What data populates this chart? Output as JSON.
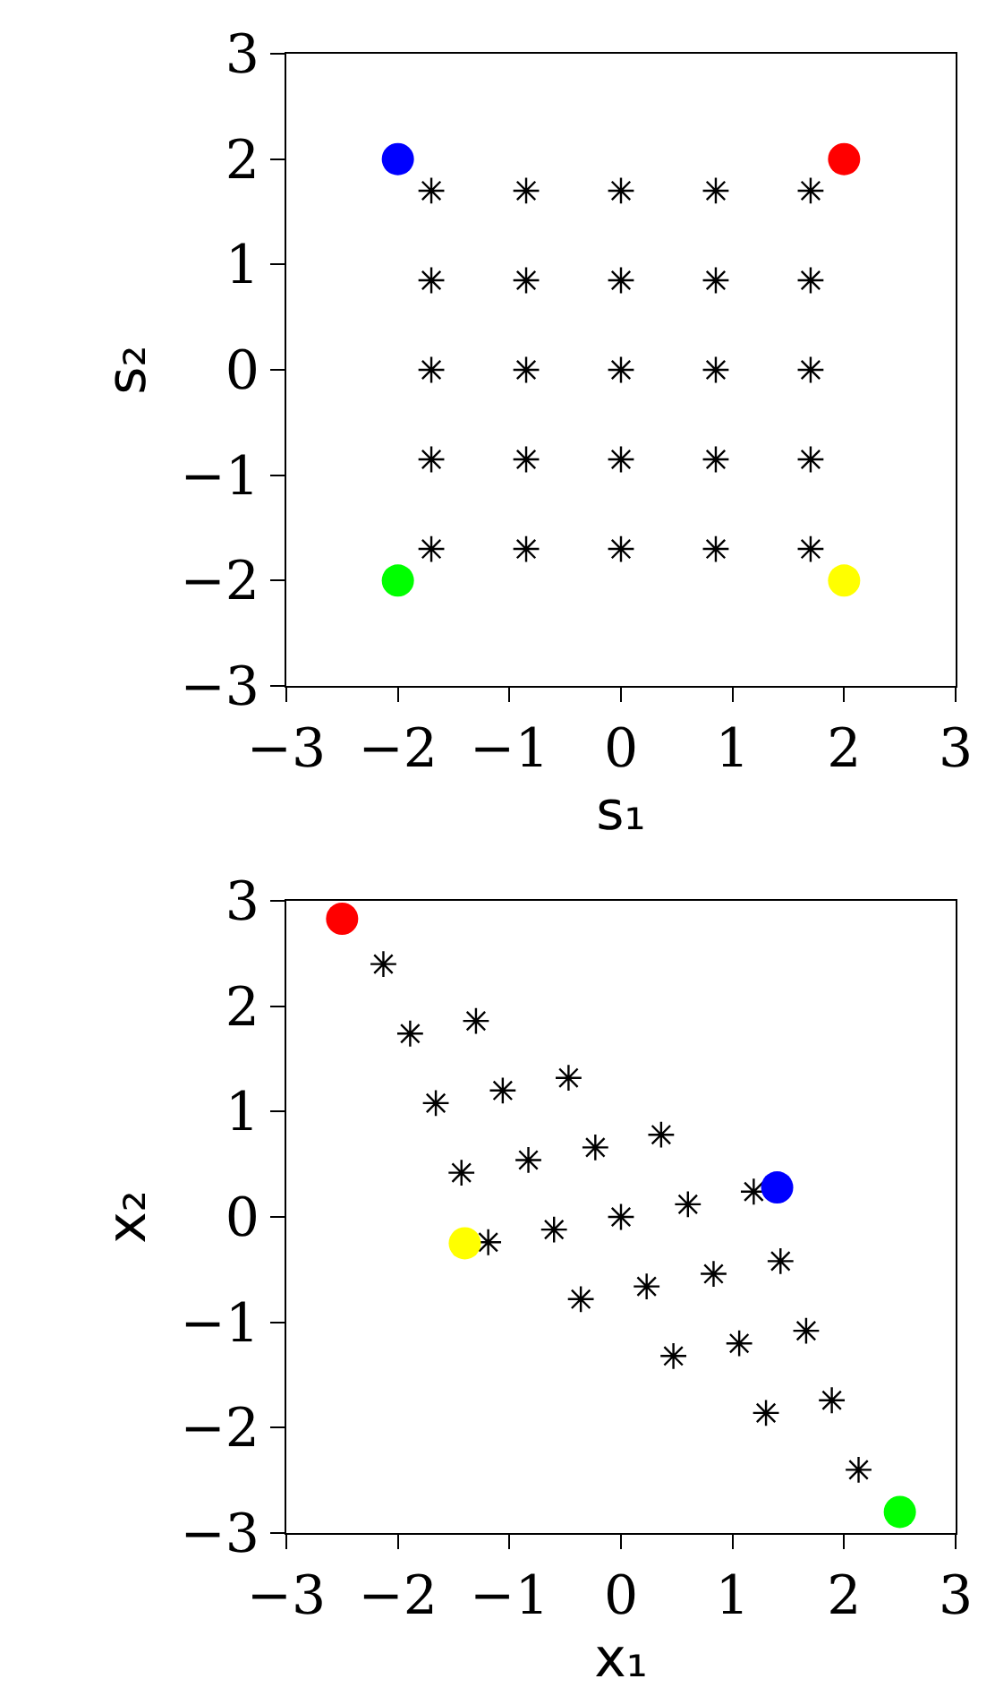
{
  "chart_data": [
    {
      "type": "scatter",
      "xlabel": "s₁",
      "ylabel": "s₂",
      "xlim": [
        -3,
        3
      ],
      "ylim": [
        -3,
        3
      ],
      "xticks": [
        -3,
        -2,
        -1,
        0,
        1,
        2,
        3
      ],
      "yticks": [
        -3,
        -2,
        -1,
        0,
        1,
        2,
        3
      ],
      "x": [
        -1.7,
        -1.7,
        -1.7,
        -1.7,
        -1.7,
        -0.85,
        -0.85,
        -0.85,
        -0.85,
        -0.85,
        0,
        0,
        0,
        0,
        0,
        0.85,
        0.85,
        0.85,
        0.85,
        0.85,
        1.7,
        1.7,
        1.7,
        1.7,
        1.7
      ],
      "series": [
        {
          "color": "#000000",
          "marker": "cross",
          "values": [
            -1.7,
            -0.85,
            0,
            0.85,
            1.7,
            -1.7,
            -0.85,
            0,
            0.85,
            1.7,
            -1.7,
            -0.85,
            0,
            0.85,
            1.7,
            -1.7,
            -0.85,
            0,
            0.85,
            1.7,
            -1.7,
            -0.85,
            0,
            0.85,
            1.7
          ]
        },
        {
          "x": [
            2,
            -2,
            -2,
            2
          ],
          "colors": [
            "#ff0000",
            "#0000ff",
            "#00ff00",
            "#ffff00"
          ],
          "marker": "circle",
          "values": [
            2,
            2,
            -2,
            -2
          ]
        }
      ]
    },
    {
      "type": "scatter",
      "xlabel": "x₁",
      "ylabel": "x₂",
      "xlim": [
        -3,
        3
      ],
      "ylim": [
        -3,
        3
      ],
      "xticks": [
        -3,
        -2,
        -1,
        0,
        1,
        2,
        3
      ],
      "yticks": [
        -3,
        -2,
        -1,
        0,
        1,
        2,
        3
      ],
      "x": [
        2.13,
        1.89,
        1.66,
        1.43,
        1.19,
        1.3,
        1.06,
        0.83,
        0.6,
        0.36,
        0.47,
        0.23,
        0,
        -0.23,
        -0.47,
        -0.36,
        -0.6,
        -0.83,
        -1.06,
        -1.3,
        -1.19,
        -1.43,
        -1.66,
        -1.89,
        -2.13
      ],
      "series": [
        {
          "color": "#000000",
          "marker": "cross",
          "values": [
            -2.4,
            -1.74,
            -1.08,
            -0.42,
            0.24,
            -1.86,
            -1.2,
            -0.54,
            0.12,
            0.78,
            -1.32,
            -0.66,
            0,
            0.66,
            1.32,
            -0.78,
            -0.12,
            0.54,
            1.2,
            1.86,
            -0.24,
            0.42,
            1.08,
            1.74,
            2.4
          ]
        },
        {
          "x": [
            -2.5,
            1.4,
            2.5,
            -1.4
          ],
          "colors": [
            "#ff0000",
            "#0000ff",
            "#00ff00",
            "#ffff00"
          ],
          "marker": "circle",
          "values": [
            2.83,
            0.28,
            -2.8,
            -0.25
          ]
        }
      ]
    }
  ]
}
